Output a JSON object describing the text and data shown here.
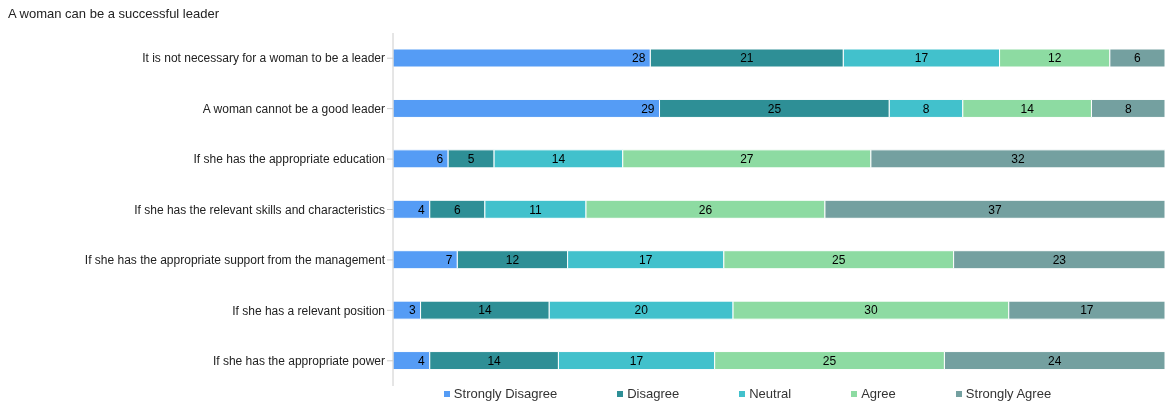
{
  "chart_data": {
    "type": "bar",
    "title": "A woman can be a successful leader",
    "orientation": "horizontal",
    "stacked": true,
    "data_labels": true,
    "legend": "bottom",
    "categories": [
      "It is not necessary for a woman to be a leader",
      "A woman cannot be a good leader",
      "If she has the appropriate education",
      "If she has the relevant skills and characteristics",
      "If she has the appropriate support from the management",
      "If she has a relevant position",
      "If she has the appropriate power"
    ],
    "series": [
      {
        "name": "Strongly Disagree",
        "color": "#559cf5",
        "values": [
          28,
          29,
          6,
          4,
          7,
          3,
          4
        ]
      },
      {
        "name": "Disagree",
        "color": "#2e8f96",
        "values": [
          21,
          25,
          5,
          6,
          12,
          14,
          14
        ]
      },
      {
        "name": "Neutral",
        "color": "#42c1cc",
        "values": [
          17,
          8,
          14,
          11,
          17,
          20,
          17
        ]
      },
      {
        "name": "Agree",
        "color": "#8ddba2",
        "values": [
          12,
          14,
          27,
          26,
          25,
          30,
          25
        ]
      },
      {
        "name": "Strongly Agree",
        "color": "#74a0a0",
        "values": [
          6,
          8,
          32,
          37,
          23,
          17,
          24
        ]
      }
    ]
  }
}
